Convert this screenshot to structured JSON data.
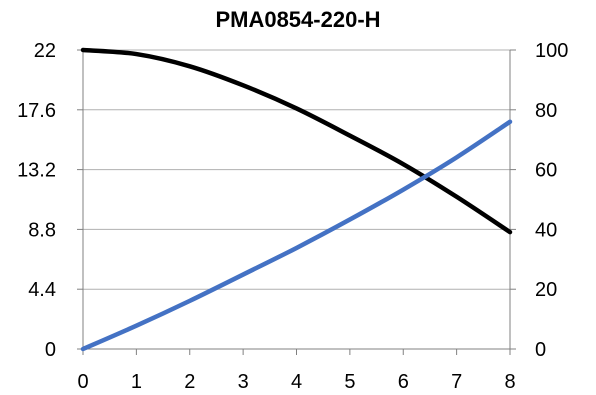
{
  "chart_data": {
    "type": "line",
    "title": "PMA0854-220-H",
    "xlabel": "",
    "ylabel_left": "",
    "ylabel_right": "",
    "x_ticks": [
      "0",
      "1",
      "2",
      "3",
      "4",
      "5",
      "6",
      "7",
      "8"
    ],
    "y_left_ticks": [
      "0",
      "4.4",
      "8.8",
      "13.2",
      "17.6",
      "22"
    ],
    "y_right_ticks": [
      "0",
      "20",
      "40",
      "60",
      "80",
      "100"
    ],
    "xlim": [
      0,
      8
    ],
    "ylim_left": [
      0,
      22
    ],
    "ylim_right": [
      0,
      100
    ],
    "grid": true,
    "legend": "none",
    "series": [
      {
        "axis": "left",
        "color": "#000000",
        "x": [
          0,
          1,
          2,
          3,
          4,
          5,
          6,
          7,
          8
        ],
        "values": [
          22.0,
          21.7,
          20.8,
          19.4,
          17.7,
          15.7,
          13.6,
          11.2,
          8.6
        ]
      },
      {
        "axis": "right",
        "color": "#4472C4",
        "x": [
          0,
          1,
          2,
          3,
          4,
          5,
          6,
          7,
          8
        ],
        "values": [
          0,
          7.8,
          16.1,
          24.9,
          33.8,
          43.3,
          53.3,
          64.1,
          76.0
        ]
      }
    ]
  }
}
